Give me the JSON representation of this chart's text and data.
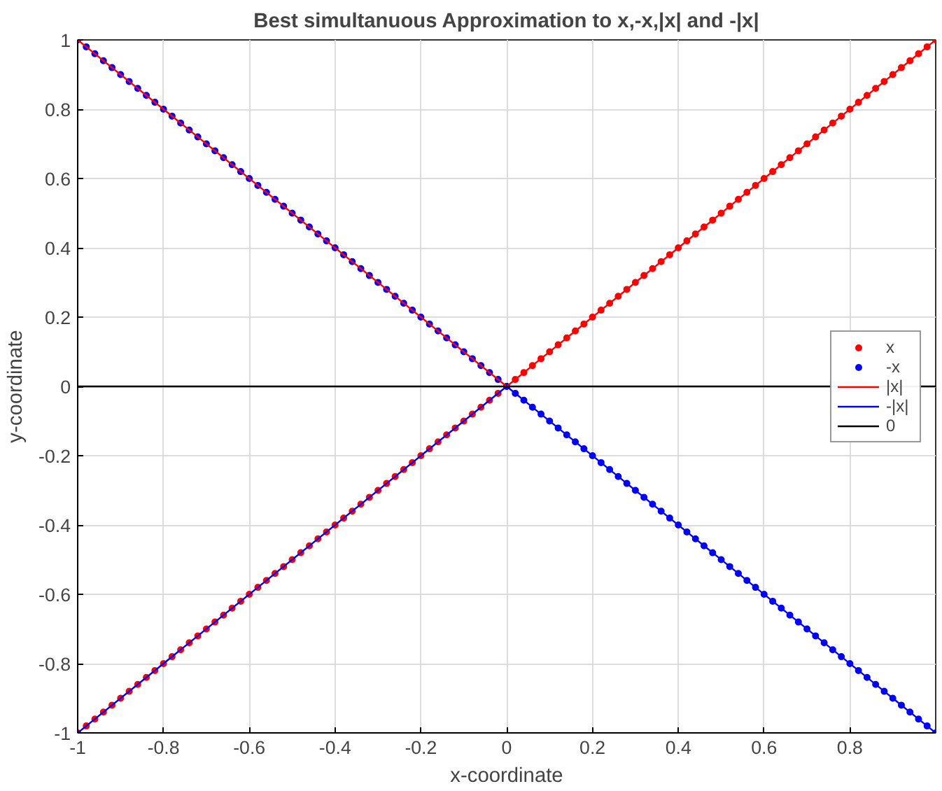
{
  "chart_data": {
    "type": "line",
    "title": "Best simultanuous Approximation to x,-x,|x| and -|x|",
    "xlabel": "x-coordinate",
    "ylabel": "y-coordinate",
    "x": [
      -1,
      -0.98,
      -0.96,
      -0.94,
      -0.92,
      -0.9,
      -0.88,
      -0.86,
      -0.84,
      -0.82,
      -0.8,
      -0.78,
      -0.76,
      -0.74,
      -0.72,
      -0.7,
      -0.68,
      -0.66,
      -0.64,
      -0.62,
      -0.6,
      -0.58,
      -0.56,
      -0.54,
      -0.52,
      -0.5,
      -0.48,
      -0.46,
      -0.44,
      -0.42,
      -0.4,
      -0.38,
      -0.36,
      -0.34,
      -0.32,
      -0.3,
      -0.28,
      -0.26,
      -0.24,
      -0.22,
      -0.2,
      -0.18,
      -0.16,
      -0.14,
      -0.12,
      -0.1,
      -0.08,
      -0.06,
      -0.04,
      -0.02,
      0,
      0.02,
      0.04,
      0.06,
      0.08,
      0.1,
      0.12,
      0.14,
      0.16,
      0.18,
      0.2,
      0.22,
      0.24,
      0.26,
      0.28,
      0.3,
      0.32,
      0.34,
      0.36,
      0.38,
      0.4,
      0.42,
      0.44,
      0.46,
      0.48,
      0.5,
      0.52,
      0.54,
      0.56,
      0.58,
      0.6,
      0.62,
      0.64,
      0.66,
      0.68,
      0.7,
      0.72,
      0.74,
      0.76,
      0.78,
      0.8,
      0.82,
      0.84,
      0.86,
      0.88,
      0.9,
      0.92,
      0.94,
      0.96,
      0.98,
      1
    ],
    "series": [
      {
        "name": "x",
        "type": "scatter",
        "marker": "circle",
        "color": "#ff0000",
        "values": [
          -1,
          -0.98,
          -0.96,
          -0.94,
          -0.92,
          -0.9,
          -0.88,
          -0.86,
          -0.84,
          -0.82,
          -0.8,
          -0.78,
          -0.76,
          -0.74,
          -0.72,
          -0.7,
          -0.68,
          -0.66,
          -0.64,
          -0.62,
          -0.6,
          -0.58,
          -0.56,
          -0.54,
          -0.52,
          -0.5,
          -0.48,
          -0.46,
          -0.44,
          -0.42,
          -0.4,
          -0.38,
          -0.36,
          -0.34,
          -0.32,
          -0.3,
          -0.28,
          -0.26,
          -0.24,
          -0.22,
          -0.2,
          -0.18,
          -0.16,
          -0.14,
          -0.12,
          -0.1,
          -0.08,
          -0.06,
          -0.04,
          -0.02,
          0,
          0.02,
          0.04,
          0.06,
          0.08,
          0.1,
          0.12,
          0.14,
          0.16,
          0.18,
          0.2,
          0.22,
          0.24,
          0.26,
          0.28,
          0.3,
          0.32,
          0.34,
          0.36,
          0.38,
          0.4,
          0.42,
          0.44,
          0.46,
          0.48,
          0.5,
          0.52,
          0.54,
          0.56,
          0.58,
          0.6,
          0.62,
          0.64,
          0.66,
          0.68,
          0.7,
          0.72,
          0.74,
          0.76,
          0.78,
          0.8,
          0.82,
          0.84,
          0.86,
          0.88,
          0.9,
          0.92,
          0.94,
          0.96,
          0.98,
          1
        ]
      },
      {
        "name": "-x",
        "type": "scatter",
        "marker": "circle",
        "color": "#0000ff",
        "values": [
          1,
          0.98,
          0.96,
          0.94,
          0.92,
          0.9,
          0.88,
          0.86,
          0.84,
          0.82,
          0.8,
          0.78,
          0.76,
          0.74,
          0.72,
          0.7,
          0.68,
          0.66,
          0.64,
          0.62,
          0.6,
          0.58,
          0.56,
          0.54,
          0.52,
          0.5,
          0.48,
          0.46,
          0.44,
          0.42,
          0.4,
          0.38,
          0.36,
          0.34,
          0.32,
          0.3,
          0.28,
          0.26,
          0.24,
          0.22,
          0.2,
          0.18,
          0.16,
          0.14,
          0.12,
          0.1,
          0.08,
          0.06,
          0.04,
          0.02,
          0,
          -0.02,
          -0.04,
          -0.06,
          -0.08,
          -0.1,
          -0.12,
          -0.14,
          -0.16,
          -0.18,
          -0.2,
          -0.22,
          -0.24,
          -0.26,
          -0.28,
          -0.3,
          -0.32,
          -0.34,
          -0.36,
          -0.38,
          -0.4,
          -0.42,
          -0.44,
          -0.46,
          -0.48,
          -0.5,
          -0.52,
          -0.54,
          -0.56,
          -0.58,
          -0.6,
          -0.62,
          -0.64,
          -0.66,
          -0.68,
          -0.7,
          -0.72,
          -0.74,
          -0.76,
          -0.78,
          -0.8,
          -0.82,
          -0.84,
          -0.86,
          -0.88,
          -0.9,
          -0.92,
          -0.94,
          -0.96,
          -0.98,
          -1
        ]
      },
      {
        "name": "|x|",
        "line_style": "solid",
        "color": "#ff0000",
        "x": [
          -1,
          0,
          1
        ],
        "values": [
          1,
          0,
          1
        ]
      },
      {
        "name": "-|x|",
        "line_style": "solid",
        "color": "#0000ff",
        "x": [
          -1,
          0,
          1
        ],
        "values": [
          -1,
          0,
          -1
        ]
      },
      {
        "name": "0",
        "line_style": "solid",
        "color": "#000000",
        "x": [
          -1,
          1
        ],
        "values": [
          0,
          0
        ]
      }
    ],
    "xlim": [
      -1,
      1
    ],
    "ylim": [
      -1,
      1
    ],
    "xticks": [
      -1,
      -0.8,
      -0.6,
      -0.4,
      -0.2,
      0,
      0.2,
      0.4,
      0.6,
      0.8
    ],
    "yticks": [
      -1,
      -0.8,
      -0.6,
      -0.4,
      -0.2,
      0,
      0.2,
      0.4,
      0.6,
      0.8,
      1
    ],
    "grid": true,
    "legend": "right"
  }
}
